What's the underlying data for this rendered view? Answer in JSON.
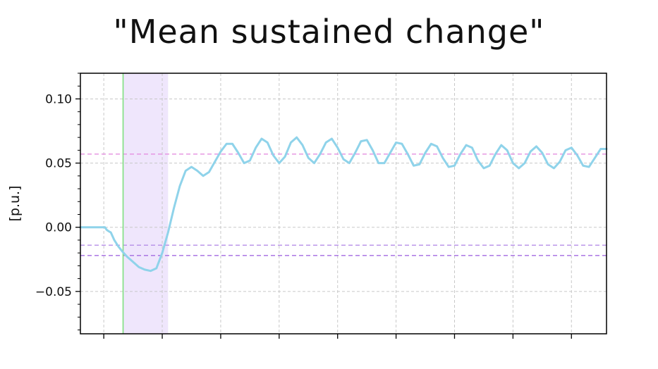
{
  "chart_data": {
    "type": "line",
    "title": "\"Mean sustained change\"",
    "xlabel": "",
    "ylabel": "[p.u.]",
    "xlim": [
      -0.4,
      8.6
    ],
    "ylim": [
      -0.083,
      0.12
    ],
    "x_ticks": [
      0,
      1,
      2,
      3,
      4,
      5,
      6,
      7,
      8
    ],
    "x_tick_labels_shown": false,
    "y_ticks": [
      -0.05,
      0.0,
      0.05,
      0.1
    ],
    "y_tick_labels": [
      "−0.05",
      "0.00",
      "0.05",
      "0.10"
    ],
    "grid": true,
    "series": [
      {
        "color": "#8fd3ea",
        "x": [
          -0.4,
          0.0,
          0.02,
          0.05,
          0.08,
          0.12,
          0.18,
          0.25,
          0.32,
          0.4,
          0.5,
          0.6,
          0.7,
          0.8,
          0.9,
          1.0,
          1.1,
          1.2,
          1.3,
          1.4,
          1.5,
          1.6,
          1.7,
          1.8,
          1.9,
          2.0,
          2.1,
          2.2,
          2.3,
          2.4,
          2.5,
          2.6,
          2.7,
          2.8,
          2.9,
          3.0,
          3.1,
          3.2,
          3.3,
          3.4,
          3.5,
          3.6,
          3.7,
          3.8,
          3.9,
          4.0,
          4.1,
          4.2,
          4.3,
          4.4,
          4.5,
          4.6,
          4.7,
          4.8,
          4.9,
          5.0,
          5.1,
          5.2,
          5.3,
          5.4,
          5.5,
          5.6,
          5.7,
          5.8,
          5.9,
          6.0,
          6.1,
          6.2,
          6.3,
          6.4,
          6.5,
          6.6,
          6.7,
          6.8,
          6.9,
          7.0,
          7.1,
          7.2,
          7.3,
          7.4,
          7.5,
          7.6,
          7.7,
          7.8,
          7.9,
          8.0,
          8.1,
          8.2,
          8.3,
          8.4,
          8.5,
          8.6
        ],
        "y": [
          0.0,
          0.0,
          0.0,
          -0.002,
          -0.003,
          -0.004,
          -0.01,
          -0.015,
          -0.019,
          -0.023,
          -0.027,
          -0.031,
          -0.033,
          -0.034,
          -0.032,
          -0.02,
          -0.004,
          0.015,
          0.032,
          0.044,
          0.047,
          0.044,
          0.04,
          0.043,
          0.051,
          0.059,
          0.065,
          0.065,
          0.058,
          0.05,
          0.052,
          0.062,
          0.069,
          0.066,
          0.056,
          0.05,
          0.055,
          0.066,
          0.07,
          0.064,
          0.054,
          0.05,
          0.057,
          0.066,
          0.069,
          0.062,
          0.053,
          0.05,
          0.058,
          0.067,
          0.068,
          0.06,
          0.05,
          0.05,
          0.058,
          0.066,
          0.065,
          0.057,
          0.048,
          0.049,
          0.058,
          0.065,
          0.063,
          0.054,
          0.047,
          0.048,
          0.057,
          0.064,
          0.062,
          0.052,
          0.046,
          0.048,
          0.057,
          0.064,
          0.06,
          0.05,
          0.046,
          0.05,
          0.059,
          0.063,
          0.058,
          0.049,
          0.046,
          0.051,
          0.06,
          0.062,
          0.056,
          0.048,
          0.047,
          0.054,
          0.061,
          0.061
        ]
      }
    ],
    "hlines": [
      {
        "y": 0.057,
        "color": "#e58fe0",
        "style": "dashed"
      },
      {
        "y": -0.014,
        "color": "#b58de8",
        "style": "dashed"
      },
      {
        "y": -0.022,
        "color": "#a26ae0",
        "style": "dashed"
      }
    ],
    "vlines": [
      {
        "x": 0.33,
        "color": "#7fe07f",
        "style": "solid"
      }
    ],
    "shaded_regions": [
      {
        "x0": 0.33,
        "x1": 1.1,
        "color": "#ece2fb"
      }
    ]
  }
}
